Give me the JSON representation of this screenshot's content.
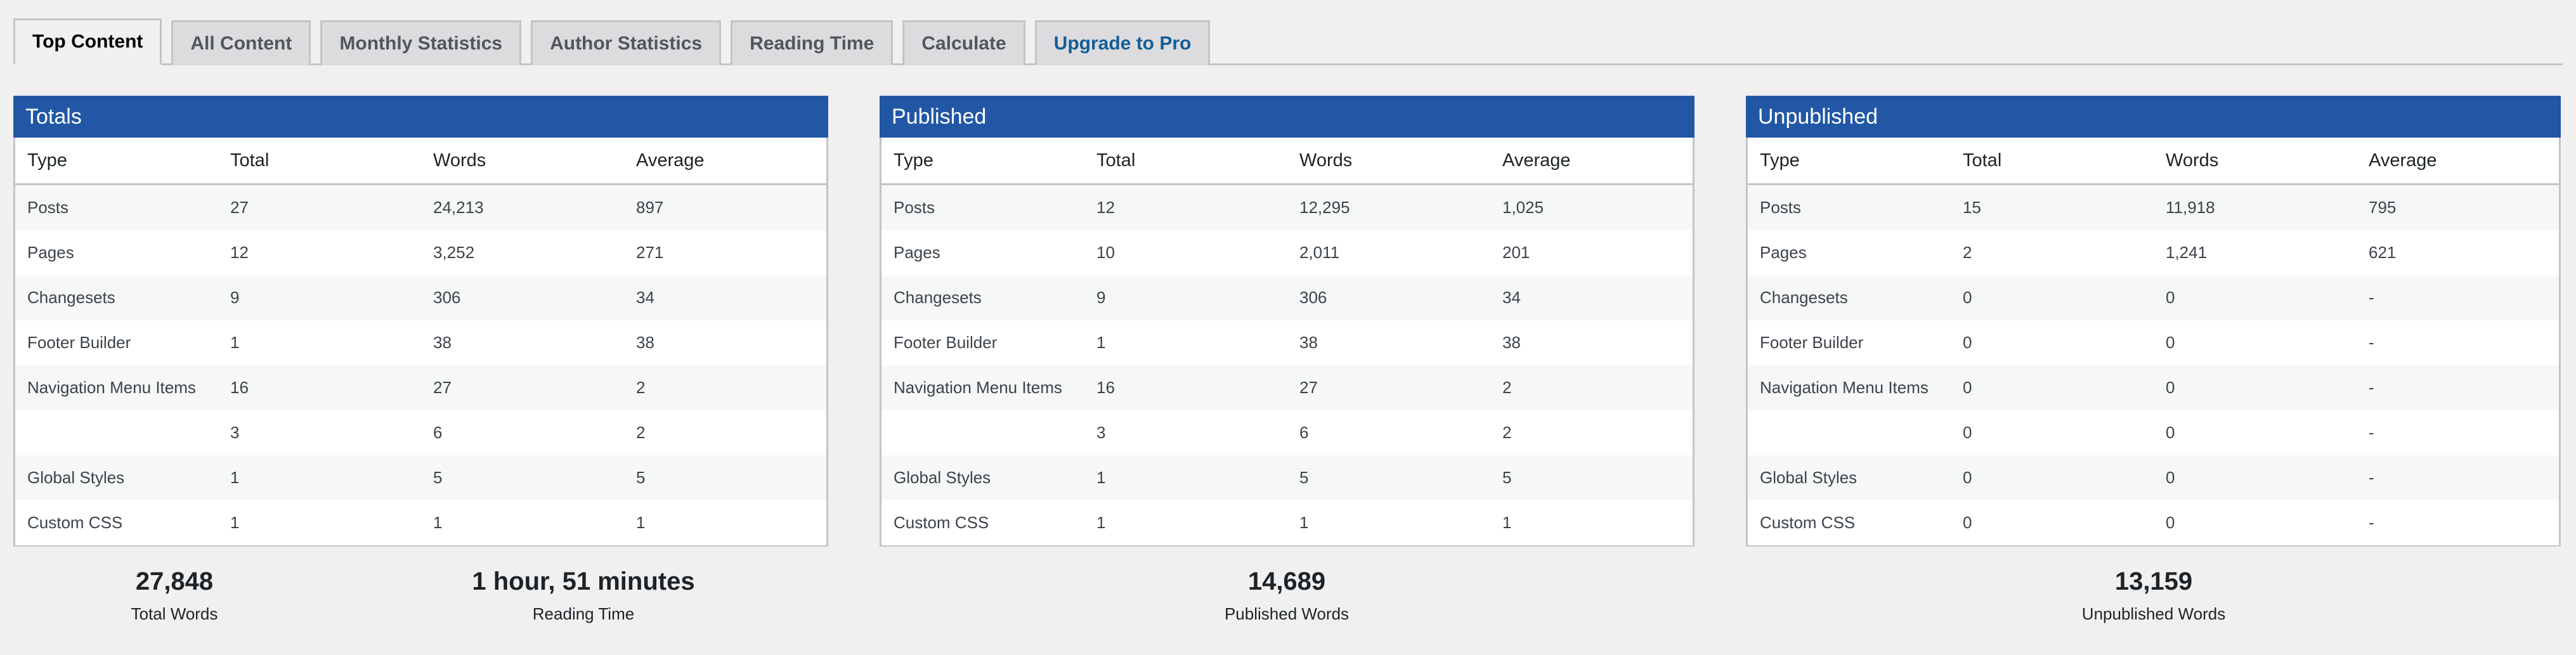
{
  "tabs": [
    {
      "label": "Top Content",
      "active": true
    },
    {
      "label": "All Content"
    },
    {
      "label": "Monthly Statistics"
    },
    {
      "label": "Author Statistics"
    },
    {
      "label": "Reading Time"
    },
    {
      "label": "Calculate"
    },
    {
      "label": "Upgrade to Pro"
    }
  ],
  "columns": [
    "Type",
    "Total",
    "Words",
    "Average"
  ],
  "panels": [
    {
      "title": "Totals",
      "rows": [
        [
          "Posts",
          "27",
          "24,213",
          "897"
        ],
        [
          "Pages",
          "12",
          "3,252",
          "271"
        ],
        [
          "Changesets",
          "9",
          "306",
          "34"
        ],
        [
          "Footer Builder",
          "1",
          "38",
          "38"
        ],
        [
          "Navigation Menu Items",
          "16",
          "27",
          "2"
        ],
        [
          "",
          "3",
          "6",
          "2"
        ],
        [
          "Global Styles",
          "1",
          "5",
          "5"
        ],
        [
          "Custom CSS",
          "1",
          "1",
          "1"
        ]
      ]
    },
    {
      "title": "Published",
      "rows": [
        [
          "Posts",
          "12",
          "12,295",
          "1,025"
        ],
        [
          "Pages",
          "10",
          "2,011",
          "201"
        ],
        [
          "Changesets",
          "9",
          "306",
          "34"
        ],
        [
          "Footer Builder",
          "1",
          "38",
          "38"
        ],
        [
          "Navigation Menu Items",
          "16",
          "27",
          "2"
        ],
        [
          "",
          "3",
          "6",
          "2"
        ],
        [
          "Global Styles",
          "1",
          "5",
          "5"
        ],
        [
          "Custom CSS",
          "1",
          "1",
          "1"
        ]
      ]
    },
    {
      "title": "Unpublished",
      "rows": [
        [
          "Posts",
          "15",
          "11,918",
          "795"
        ],
        [
          "Pages",
          "2",
          "1,241",
          "621"
        ],
        [
          "Changesets",
          "0",
          "0",
          "-"
        ],
        [
          "Footer Builder",
          "0",
          "0",
          "-"
        ],
        [
          "Navigation Menu Items",
          "0",
          "0",
          "-"
        ],
        [
          "",
          "0",
          "0",
          "-"
        ],
        [
          "Global Styles",
          "0",
          "0",
          "-"
        ],
        [
          "Custom CSS",
          "0",
          "0",
          "-"
        ]
      ]
    }
  ],
  "stats": [
    {
      "value": "27,848",
      "label": "Total Words"
    },
    {
      "value": "1 hour, 51 minutes",
      "label": "Reading Time"
    },
    {
      "value": "14,689",
      "label": "Published Words"
    },
    {
      "value": "13,159",
      "label": "Unpublished Words"
    }
  ],
  "colors": {
    "header_blue": "#2257a5",
    "pro_link": "#2271b1",
    "background": "#f0f0f1"
  }
}
